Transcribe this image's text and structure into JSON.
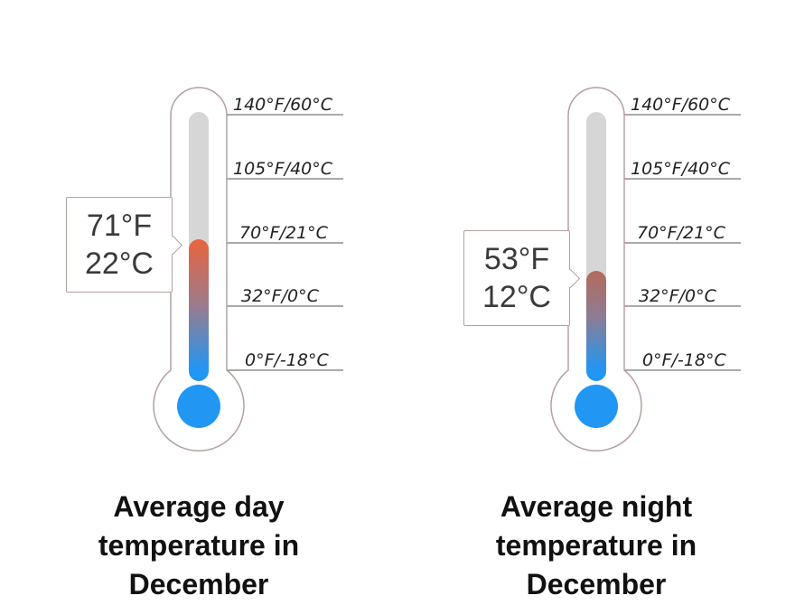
{
  "chart_data": [
    {
      "type": "thermometer",
      "title": "Average day temperature in December",
      "value_f": 71,
      "value_c": 22,
      "value_f_label": "71°F",
      "value_c_label": "22°C",
      "scale_min_c": -18,
      "scale_max_c": 60,
      "ticks": [
        {
          "label": "140°F/60°C",
          "c": 60
        },
        {
          "label": "105°F/40°C",
          "c": 40
        },
        {
          "label": "70°F/21°C",
          "c": 21
        },
        {
          "label": "32°F/0°C",
          "c": 0
        },
        {
          "label": "0°F/-18°C",
          "c": -18
        }
      ]
    },
    {
      "type": "thermometer",
      "title": "Average night temperature in December",
      "value_f": 53,
      "value_c": 12,
      "value_f_label": "53°F",
      "value_c_label": "12°C",
      "scale_min_c": -18,
      "scale_max_c": 60,
      "ticks": [
        {
          "label": "140°F/60°C",
          "c": 60
        },
        {
          "label": "105°F/40°C",
          "c": 40
        },
        {
          "label": "70°F/21°C",
          "c": 21
        },
        {
          "label": "32°F/0°C",
          "c": 0
        },
        {
          "label": "0°F/-18°C",
          "c": -18
        }
      ]
    }
  ],
  "colors": {
    "outline": "#b79f9f",
    "tube": "#d6d6d6",
    "cold": "#2196f3",
    "mid": "#9c7b8c",
    "warm": "#e8643c",
    "gridline": "#555555"
  }
}
